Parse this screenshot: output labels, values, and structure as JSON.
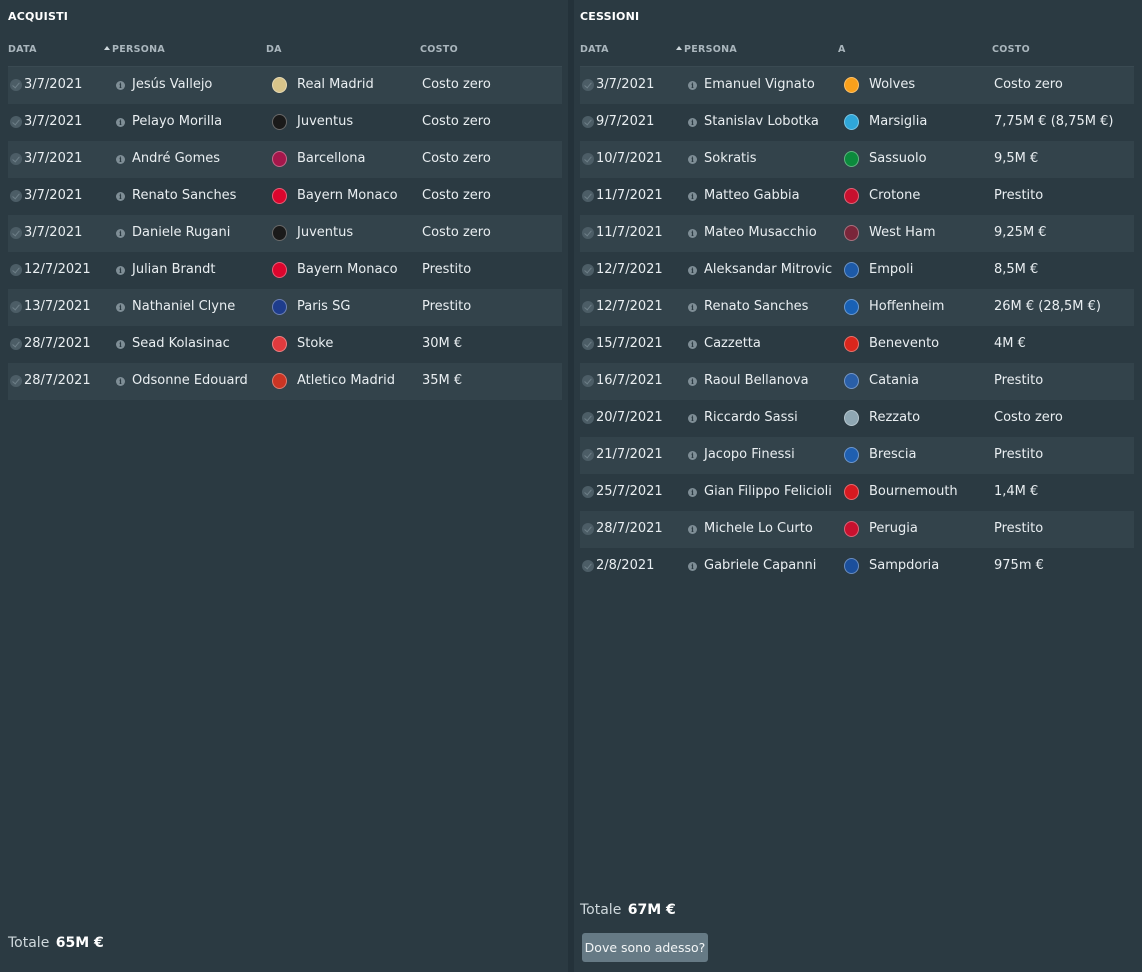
{
  "acquisti": {
    "title": "ACQUISTI",
    "columns": [
      "DATA",
      "PERSONA",
      "DA",
      "COSTO"
    ],
    "total_label": "Totale",
    "total_value": "65M €",
    "rows": [
      {
        "date": "3/7/2021",
        "person": "Jesús Vallejo",
        "club": "Real Madrid",
        "cost": "Costo zero",
        "logo_color": "#d8c48a"
      },
      {
        "date": "3/7/2021",
        "person": "Pelayo Morilla",
        "club": "Juventus",
        "cost": "Costo zero",
        "logo_color": "#1a1a1a"
      },
      {
        "date": "3/7/2021",
        "person": "André Gomes",
        "club": "Barcellona",
        "cost": "Costo zero",
        "logo_color": "#a5174b"
      },
      {
        "date": "3/7/2021",
        "person": "Renato Sanches",
        "club": "Bayern Monaco",
        "cost": "Costo zero",
        "logo_color": "#dc052d"
      },
      {
        "date": "3/7/2021",
        "person": "Daniele Rugani",
        "club": "Juventus",
        "cost": "Costo zero",
        "logo_color": "#1a1a1a"
      },
      {
        "date": "12/7/2021",
        "person": "Julian Brandt",
        "club": "Bayern Monaco",
        "cost": "Prestito",
        "logo_color": "#dc052d"
      },
      {
        "date": "13/7/2021",
        "person": "Nathaniel Clyne",
        "club": "Paris SG",
        "cost": "Prestito",
        "logo_color": "#1e3c8c"
      },
      {
        "date": "28/7/2021",
        "person": "Sead Kolasinac",
        "club": "Stoke",
        "cost": "30M €",
        "logo_color": "#e03a3e"
      },
      {
        "date": "28/7/2021",
        "person": "Odsonne Edouard",
        "club": "Atletico Madrid",
        "cost": "35M €",
        "logo_color": "#cb3524"
      }
    ]
  },
  "cessioni": {
    "title": "CESSIONI",
    "columns": [
      "DATA",
      "PERSONA",
      "A",
      "COSTO"
    ],
    "total_label": "Totale",
    "total_value": "67M €",
    "button_label": "Dove sono adesso?",
    "rows": [
      {
        "date": "3/7/2021",
        "person": "Emanuel Vignato",
        "club": "Wolves",
        "cost": "Costo zero",
        "logo_color": "#f9a01b"
      },
      {
        "date": "9/7/2021",
        "person": "Stanislav Lobotka",
        "club": "Marsiglia",
        "cost": "7,75M € (8,75M €)",
        "logo_color": "#2fa6d8"
      },
      {
        "date": "10/7/2021",
        "person": "Sokratis",
        "club": "Sassuolo",
        "cost": "9,5M €",
        "logo_color": "#0b8a3c"
      },
      {
        "date": "11/7/2021",
        "person": "Matteo Gabbia",
        "club": "Crotone",
        "cost": "Prestito",
        "logo_color": "#c8102e"
      },
      {
        "date": "11/7/2021",
        "person": "Mateo Musacchio",
        "club": "West Ham",
        "cost": "9,25M €",
        "logo_color": "#7a263a"
      },
      {
        "date": "12/7/2021",
        "person": "Aleksandar Mitrovic",
        "club": "Empoli",
        "cost": "8,5M €",
        "logo_color": "#1d5aa8"
      },
      {
        "date": "12/7/2021",
        "person": "Renato Sanches",
        "club": "Hoffenheim",
        "cost": "26M € (28,5M €)",
        "logo_color": "#1961b5"
      },
      {
        "date": "15/7/2021",
        "person": "Cazzetta",
        "club": "Benevento",
        "cost": "4M €",
        "logo_color": "#d9261c"
      },
      {
        "date": "16/7/2021",
        "person": "Raoul Bellanova",
        "club": "Catania",
        "cost": "Prestito",
        "logo_color": "#2a5fa8"
      },
      {
        "date": "20/7/2021",
        "person": "Riccardo Sassi",
        "club": "Rezzato",
        "cost": "Costo zero",
        "logo_color": "#8fa7b3"
      },
      {
        "date": "21/7/2021",
        "person": "Jacopo Finessi",
        "club": "Brescia",
        "cost": "Prestito",
        "logo_color": "#1f5fb0"
      },
      {
        "date": "25/7/2021",
        "person": "Gian Filippo Felicioli",
        "club": "Bournemouth",
        "cost": "1,4M €",
        "logo_color": "#d71920"
      },
      {
        "date": "28/7/2021",
        "person": "Michele Lo Curto",
        "club": "Perugia",
        "cost": "Prestito",
        "logo_color": "#c8102e"
      },
      {
        "date": "2/8/2021",
        "person": "Gabriele Capanni",
        "club": "Sampdoria",
        "cost": "975m €",
        "logo_color": "#1b4f9c"
      }
    ]
  }
}
